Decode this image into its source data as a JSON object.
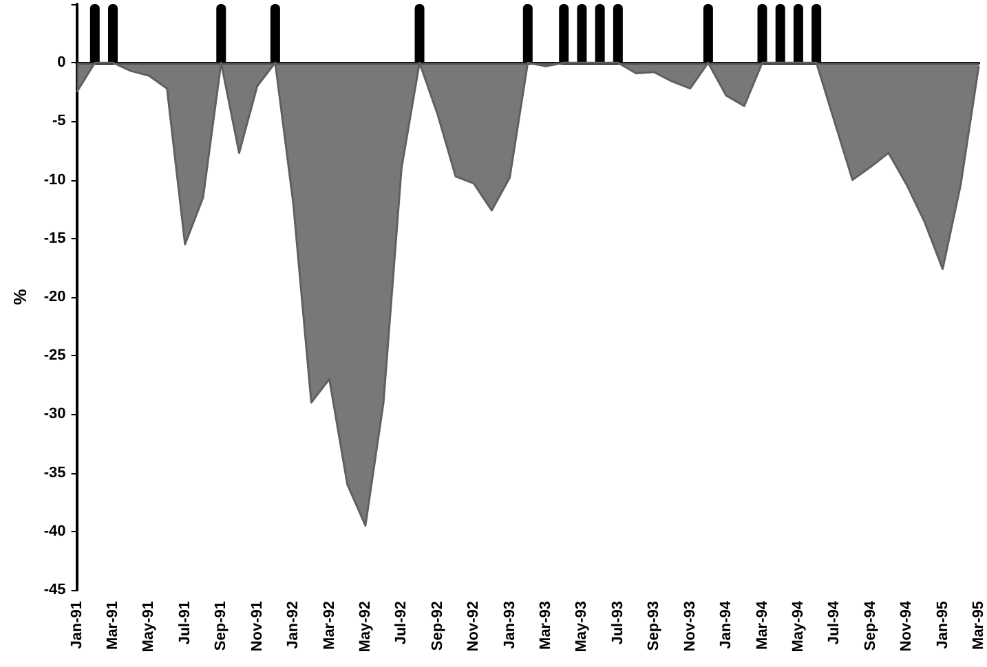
{
  "chart_data": {
    "type": "area",
    "ylabel": "%",
    "categories": [
      "Jan-91",
      null,
      "Mar-91",
      null,
      "May-91",
      null,
      "Jul-91",
      null,
      "Sep-91",
      null,
      "Nov-91",
      null,
      "Jan-92",
      null,
      "Mar-92",
      null,
      "May-92",
      null,
      "Jul-92",
      null,
      "Sep-92",
      null,
      "Nov-92",
      null,
      "Jan-93",
      null,
      "Mar-93",
      null,
      "May-93",
      null,
      "Jul-93",
      null,
      "Sep-93",
      null,
      "Nov-93",
      null,
      "Jan-94",
      null,
      "Mar-94",
      null,
      "May-94",
      null,
      "Jul-94",
      null,
      "Sep-94",
      null,
      "Nov-94",
      null,
      "Jan-95",
      null,
      "Mar-95"
    ],
    "series": [
      {
        "color": "#606060",
        "values": [
          -2.5,
          0,
          0,
          -0.7,
          -1.1,
          -2.2,
          -15.5,
          -11.5,
          0,
          -7.7,
          -2,
          0,
          -12,
          -29,
          -27,
          -36,
          -39.5,
          -29,
          -9,
          0,
          -4.4,
          -9.7,
          -10.3,
          -12.6,
          -9.8,
          0,
          -0.3,
          0,
          0,
          0,
          0,
          -0.9,
          -0.8,
          -1.6,
          -2.2,
          0,
          -2.8,
          -3.7,
          0,
          0,
          0,
          0,
          -5,
          -10,
          -8.9,
          -7.7,
          -10.4,
          -13.6,
          -17.6,
          -10.4,
          -0.3
        ]
      },
      {
        "type": "bar",
        "color": "#000000",
        "values": [
          null,
          5,
          5,
          null,
          null,
          null,
          null,
          null,
          5,
          null,
          null,
          5,
          null,
          null,
          null,
          null,
          null,
          null,
          null,
          5,
          null,
          null,
          null,
          null,
          null,
          5,
          null,
          5,
          5,
          5,
          5,
          null,
          null,
          null,
          null,
          5,
          null,
          null,
          5,
          5,
          5,
          5,
          null,
          null,
          null,
          null,
          null,
          null,
          null,
          null,
          null
        ]
      }
    ],
    "ylim": [
      -45,
      5
    ],
    "yticks": [
      {
        "value": 5,
        "label": null
      },
      0,
      -5,
      -10,
      -15,
      -20,
      -25,
      -30,
      -35,
      -40,
      -45
    ],
    "marker": "none"
  }
}
